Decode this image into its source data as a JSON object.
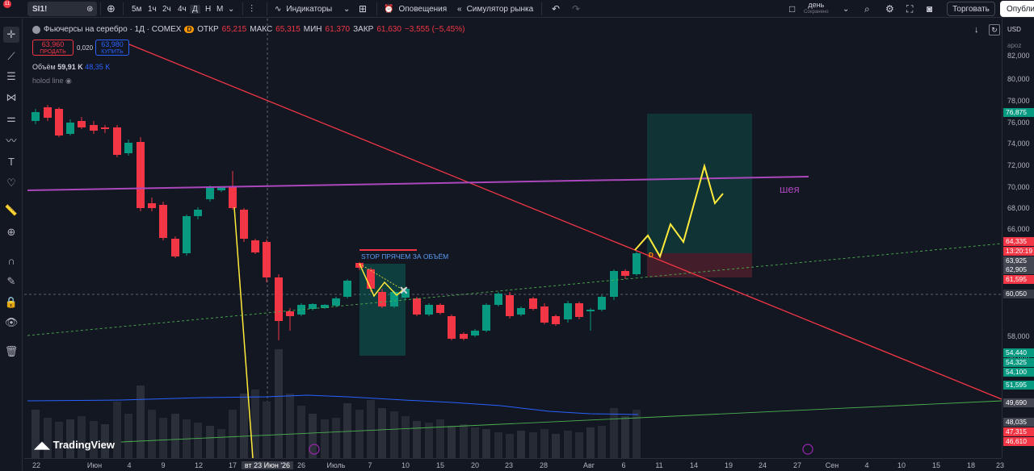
{
  "toolbar": {
    "notif_count": "11",
    "symbol": "SI1!",
    "intervals": [
      "5м",
      "1ч",
      "2ч",
      "4ч",
      "Д",
      "Н",
      "М"
    ],
    "indicators": "Индикаторы",
    "alerts": "Оповещения",
    "replay": "Симулятор рынка",
    "layout_name": "день",
    "layout_status": "Сохранено",
    "trade": "Торговать",
    "publish": "Опубли"
  },
  "legend": {
    "title": "Фьючерсы на серебро · 1Д · COMEX",
    "o_label": "ОТКР",
    "o": "65,215",
    "h_label": "МАКС",
    "h": "65,315",
    "l_label": "МИН",
    "l": "61,370",
    "c_label": "ЗАКР",
    "c": "61,630",
    "change": "−3,555 (−5,45%)",
    "sell_price": "63,960",
    "sell_label": "ПРОДАТЬ",
    "spread": "0,020",
    "buy_price": "63,980",
    "buy_label": "КУПИТЬ",
    "volume_label": "Объём",
    "volume_value": "59,91 K",
    "volume_ma": "48,35 K",
    "indicator_name": "holod line",
    "exchange_badge": "D"
  },
  "annotations": {
    "stop_text": "STOP ПРЯЧЕМ ЗА ОБЪЁМ",
    "neck_text": "шея",
    "d_marker": "D"
  },
  "price_axis": {
    "currency": "USD",
    "unit": "apoz",
    "labels": [
      "82,000",
      "80,000",
      "78,000",
      "76,000",
      "74,000",
      "72,000",
      "70,000",
      "68,000",
      "66,000",
      "58,000",
      "56,000"
    ],
    "tags": [
      {
        "value": "76,875",
        "color": "#089981"
      },
      {
        "value": "64,335",
        "color": "#f23645"
      },
      {
        "value": "13:20:19",
        "color": "#f23645"
      },
      {
        "value": "63,925",
        "color": "#434651"
      },
      {
        "value": "62,905",
        "color": "#434651"
      },
      {
        "value": "61,595",
        "color": "#f23645"
      },
      {
        "value": "60,050",
        "color": "#363a45"
      },
      {
        "value": "54,440",
        "color": "#089981"
      },
      {
        "value": "54,325",
        "color": "#089981"
      },
      {
        "value": "54,100",
        "color": "#089981"
      },
      {
        "value": "51,595",
        "color": "#089981"
      },
      {
        "value": "49,690",
        "color": "#434651"
      },
      {
        "value": "48,035",
        "color": "#434651"
      },
      {
        "value": "47,315",
        "color": "#f23645"
      },
      {
        "value": "46,610",
        "color": "#f23645"
      }
    ]
  },
  "time_axis": {
    "labels": [
      "22",
      "Июн",
      "4",
      "9",
      "12",
      "17",
      "вт 23 Июн '26",
      "26",
      "Июль",
      "7",
      "10",
      "15",
      "20",
      "23",
      "28",
      "Авг",
      "6",
      "11",
      "14",
      "19",
      "24",
      "27",
      "Сен",
      "4",
      "10",
      "15",
      "18",
      "23"
    ]
  },
  "branding": {
    "logo": "TradingView"
  }
}
